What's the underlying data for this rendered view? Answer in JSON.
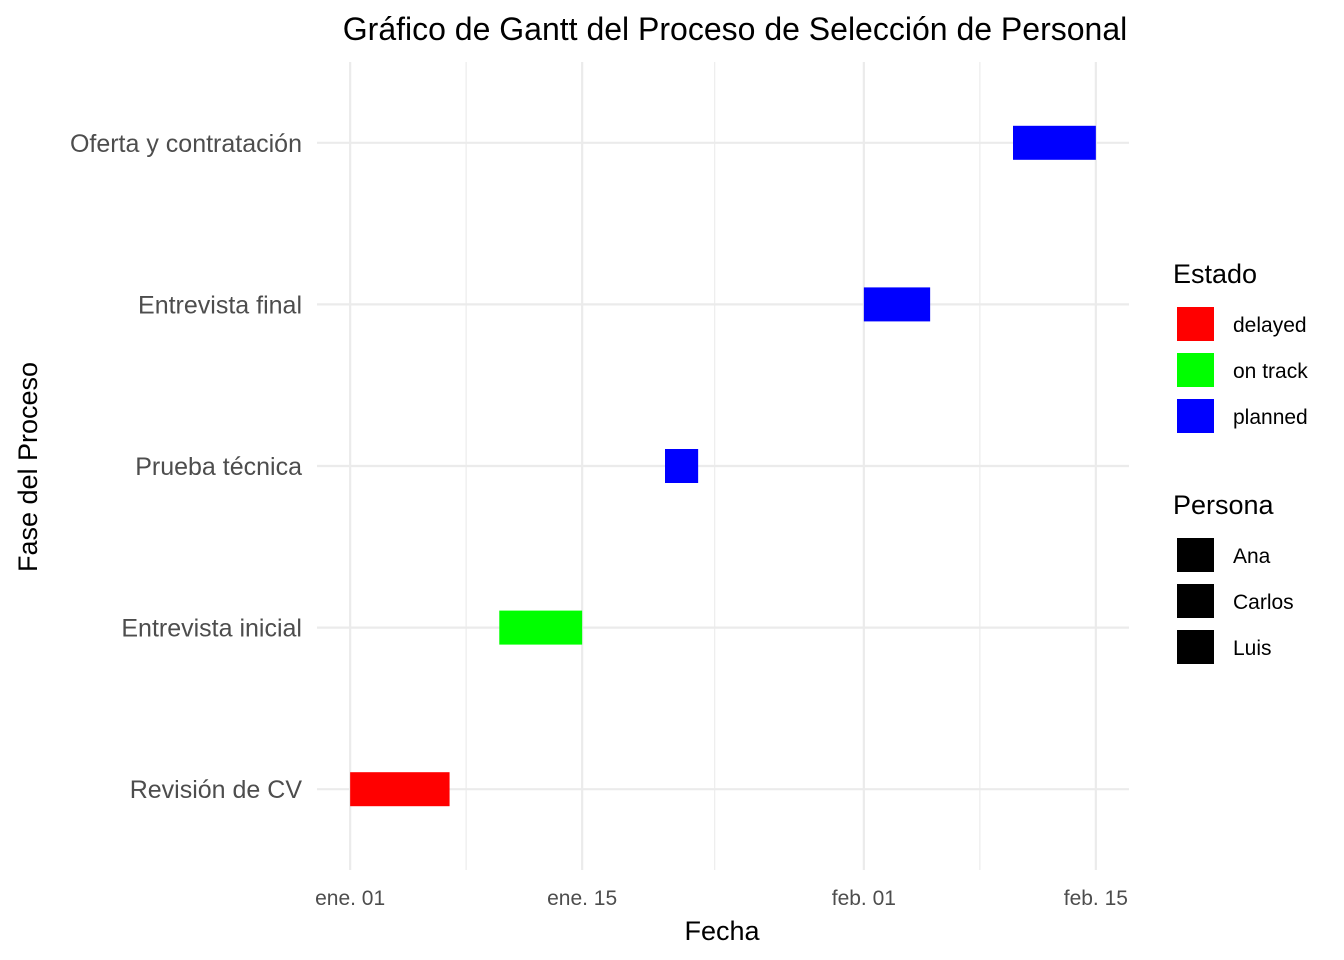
{
  "chart_data": {
    "type": "gantt",
    "title": "Gráfico de Gantt del Proceso de Selección de Personal",
    "xlabel": "Fecha",
    "ylabel": "Fase del Proceso",
    "x_range": [
      "2023-12-30",
      "2024-02-17"
    ],
    "x_ticks": [
      {
        "date": "2024-01-01",
        "label": "ene. 01"
      },
      {
        "date": "2024-01-15",
        "label": "ene. 15"
      },
      {
        "date": "2024-02-01",
        "label": "feb. 01"
      },
      {
        "date": "2024-02-15",
        "label": "feb. 15"
      }
    ],
    "x_minor_ticks": [
      "2024-01-08",
      "2024-01-23",
      "2024-02-08"
    ],
    "categories": [
      "Revisión de CV",
      "Entrevista inicial",
      "Prueba técnica",
      "Entrevista final",
      "Oferta y contratación"
    ],
    "tasks": [
      {
        "phase": "Revisión de CV",
        "start": "2024-01-01",
        "end": "2024-01-07",
        "status": "delayed"
      },
      {
        "phase": "Entrevista inicial",
        "start": "2024-01-10",
        "end": "2024-01-15",
        "status": "on track"
      },
      {
        "phase": "Prueba técnica",
        "start": "2024-01-20",
        "end": "2024-01-22",
        "status": "planned"
      },
      {
        "phase": "Entrevista final",
        "start": "2024-02-01",
        "end": "2024-02-05",
        "status": "planned"
      },
      {
        "phase": "Oferta y contratación",
        "start": "2024-02-10",
        "end": "2024-02-15",
        "status": "planned"
      }
    ],
    "legends": [
      {
        "title": "Estado",
        "items": [
          {
            "label": "delayed",
            "color": "#ff0000"
          },
          {
            "label": "on track",
            "color": "#00ff00"
          },
          {
            "label": "planned",
            "color": "#0000ff"
          }
        ]
      },
      {
        "title": "Persona",
        "items": [
          {
            "label": "Ana",
            "color": "#000000"
          },
          {
            "label": "Carlos",
            "color": "#000000"
          },
          {
            "label": "Luis",
            "color": "#000000"
          }
        ]
      }
    ],
    "legend_position": "right",
    "grid": true
  }
}
